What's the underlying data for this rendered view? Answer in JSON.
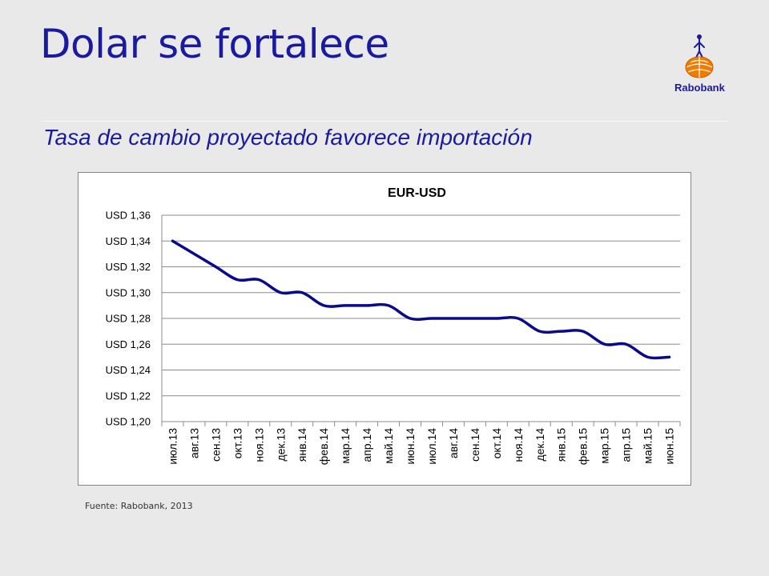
{
  "slide": {
    "title": "Dolar se fortalece",
    "subtitle": "Tasa de cambio proyectado favorece importación",
    "source": "Fuente: Rabobank, 2013",
    "logo_text": "Rabobank"
  },
  "colors": {
    "title": "#1a1aa0",
    "line": "#0a0a8c",
    "logo_orange": "#f07d00"
  },
  "icons": {
    "logo": "rabobank-logo-icon"
  },
  "chart_data": {
    "type": "line",
    "title": "EUR-USD",
    "xlabel": "",
    "ylabel": "",
    "categories": [
      "июл.13",
      "авг.13",
      "сен.13",
      "окт.13",
      "ноя.13",
      "дек.13",
      "янв.14",
      "фев.14",
      "мар.14",
      "апр.14",
      "май.14",
      "июн.14",
      "июл.14",
      "авг.14",
      "сен.14",
      "окт.14",
      "ноя.14",
      "дек.14",
      "янв.15",
      "фев.15",
      "мар.15",
      "апр.15",
      "май.15",
      "июн.15"
    ],
    "series": [
      {
        "values": [
          1.34,
          1.33,
          1.32,
          1.31,
          1.31,
          1.3,
          1.3,
          1.29,
          1.29,
          1.29,
          1.29,
          1.28,
          1.28,
          1.28,
          1.28,
          1.28,
          1.28,
          1.27,
          1.27,
          1.27,
          1.26,
          1.26,
          1.25,
          1.25
        ]
      }
    ],
    "yticks": [
      "USD 1,20",
      "USD 1,22",
      "USD 1,24",
      "USD 1,26",
      "USD 1,28",
      "USD 1,30",
      "USD 1,32",
      "USD 1,34",
      "USD 1,36"
    ],
    "ylim": [
      1.2,
      1.36
    ],
    "grid": true,
    "legend": "none"
  }
}
